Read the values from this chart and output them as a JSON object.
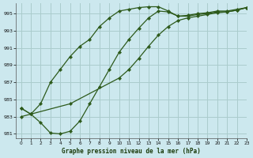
{
  "title": "Graphe pression niveau de la mer (hPa)",
  "background_color": "#cce8ee",
  "grid_color": "#aacccc",
  "line_color": "#2d5a1b",
  "xlim": [
    -0.5,
    23
  ],
  "ylim": [
    980.5,
    996.2
  ],
  "yticks": [
    981,
    983,
    985,
    987,
    989,
    991,
    993,
    995
  ],
  "xticks": [
    0,
    1,
    2,
    3,
    4,
    5,
    6,
    7,
    8,
    9,
    10,
    11,
    12,
    13,
    14,
    15,
    16,
    17,
    18,
    19,
    20,
    21,
    22,
    23
  ],
  "series": [
    {
      "x": [
        0,
        1,
        2,
        3,
        4,
        5,
        6,
        7,
        8,
        9,
        10,
        11,
        12,
        13,
        14,
        15,
        16,
        17,
        18,
        19,
        20,
        21,
        22,
        23
      ],
      "y": [
        984.0,
        983.3,
        984.5,
        987.0,
        988.5,
        990.0,
        991.2,
        992.0,
        993.5,
        994.5,
        995.3,
        995.5,
        995.7,
        995.8,
        995.8,
        995.3,
        994.7,
        994.8,
        995.0,
        995.1,
        995.3,
        995.3,
        995.5,
        995.7
      ]
    },
    {
      "x": [
        0,
        1,
        2,
        3,
        4,
        5,
        6,
        7,
        8,
        9,
        10,
        11,
        12,
        13,
        14,
        15,
        16,
        17,
        18,
        19,
        20,
        21,
        22,
        23
      ],
      "y": [
        984.0,
        983.3,
        982.3,
        981.1,
        981.0,
        981.3,
        982.5,
        984.5,
        986.5,
        988.5,
        990.5,
        992.0,
        993.3,
        994.5,
        995.3,
        995.2,
        994.7,
        994.7,
        994.9,
        995.0,
        995.2,
        995.2,
        995.4,
        995.7
      ]
    },
    {
      "x": [
        0,
        5,
        10,
        11,
        12,
        13,
        14,
        15,
        16,
        17,
        18,
        19,
        20,
        21,
        22,
        23
      ],
      "y": [
        983.0,
        984.5,
        987.5,
        988.5,
        989.8,
        991.2,
        992.5,
        993.5,
        994.2,
        994.5,
        994.7,
        994.9,
        995.1,
        995.2,
        995.4,
        995.7
      ]
    }
  ]
}
